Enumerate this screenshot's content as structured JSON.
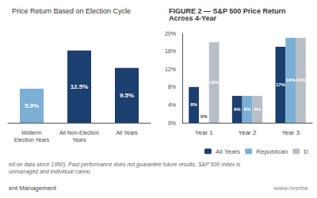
{
  "chart_data": [
    {
      "type": "bar",
      "title": "Price Return Based on Election Cycle",
      "categories": [
        "Midterm\nElection Years",
        "All Non-Election\nYears",
        "All Years"
      ],
      "values": [
        5.9,
        12.5,
        9.5
      ],
      "value_labels": [
        "5.9%",
        "12.5%",
        "9.5%"
      ],
      "colors": [
        "#7BAFD4",
        "#1B3F6E",
        "#1B3F6E"
      ],
      "ylim": [
        0,
        15.5
      ],
      "data_labels": true,
      "tick_labels": "x",
      "grid": false
    },
    {
      "type": "bar",
      "title": "FIGURE 2 — S&P 500 Price Return Across 4-Year",
      "categories": [
        "Year 1",
        "Year 2",
        "Year 3"
      ],
      "series": [
        {
          "name": "All Years",
          "color": "#1B3F6E",
          "values": [
            8,
            6,
            17
          ],
          "value_labels": [
            "8%",
            "6%",
            "17%"
          ]
        },
        {
          "name": "Republican",
          "color": "#7BAFD4",
          "values": [
            0,
            6,
            19
          ],
          "value_labels": [
            "0%",
            "6%",
            "19%"
          ]
        },
        {
          "name": "D",
          "color": "#B8BEC6",
          "values": [
            18,
            6,
            19
          ],
          "value_labels": [
            "18%",
            "6%",
            "19%"
          ]
        }
      ],
      "ylim": [
        0,
        20
      ],
      "yticks": [
        {
          "value": 0,
          "label": "0%"
        },
        {
          "value": 4,
          "label": "4%"
        },
        {
          "value": 8,
          "label": "8%"
        },
        {
          "value": 12,
          "label": "12%"
        },
        {
          "value": 16,
          "label": "16%"
        },
        {
          "value": 20,
          "label": "20%"
        }
      ],
      "data_labels": true,
      "grid": false,
      "legend": "lower right",
      "annotations": [
        "ed on data since 1950). Past performance does not guarantee future results. S&P 500 Index is unmanaged and individual canno",
        "ent Management",
        "www.riverbe"
      ]
    }
  ]
}
